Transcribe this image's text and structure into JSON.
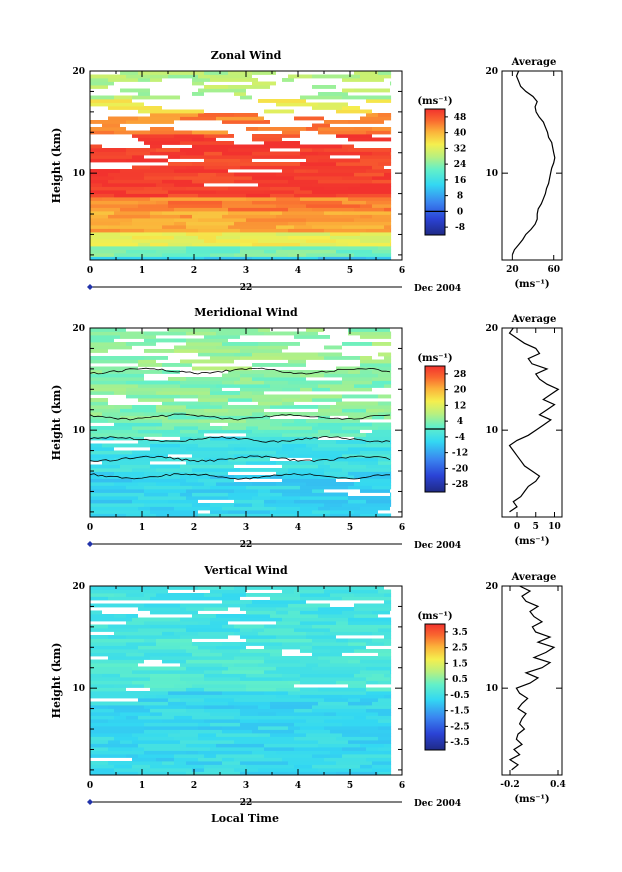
{
  "footer": {
    "xlabel": "Local Time"
  },
  "cbar_unit": "(ms⁻¹)",
  "chart_data": [
    {
      "type": "heatmap",
      "title": "Zonal Wind",
      "ylabel": "Height (km)",
      "xlim": [
        0,
        6
      ],
      "ylim": [
        1.5,
        20
      ],
      "x_ticks": [
        "0",
        "1",
        "2",
        "3",
        "4",
        "5",
        "6"
      ],
      "y_ticks": [
        "10",
        "20"
      ],
      "date_label": "22",
      "date_suffix": "Dec 2004",
      "colorbar": {
        "unit": "(ms⁻¹)",
        "ticks": [
          "48",
          "40",
          "32",
          "24",
          "16",
          "8",
          "0",
          "-8"
        ],
        "min": -12,
        "max": 52
      },
      "profile": {
        "title": "Average",
        "xlim": [
          10,
          68
        ],
        "x_ticks": [
          "20",
          "60"
        ],
        "xlabel": "(ms⁻¹)",
        "y_ticks": [
          "10",
          "20"
        ],
        "heights": [
          2,
          2.5,
          3,
          3.5,
          4,
          4.5,
          5,
          5.5,
          6,
          6.5,
          7,
          7.5,
          8,
          8.5,
          9,
          9.5,
          10,
          10.5,
          11,
          11.5,
          12,
          12.5,
          13,
          13.5,
          14,
          14.5,
          15,
          15.5,
          16,
          16.5,
          17,
          17.5,
          18,
          18.5,
          19,
          19.5,
          20
        ],
        "values": [
          20,
          22,
          26,
          30,
          33,
          38,
          42,
          44,
          44,
          45,
          48,
          50,
          52,
          53,
          55,
          56,
          57,
          58,
          60,
          61,
          60,
          59,
          58,
          55,
          54,
          52,
          50,
          46,
          43,
          42,
          44,
          40,
          33,
          28,
          26,
          24,
          26
        ]
      }
    },
    {
      "type": "heatmap",
      "title": "Meridional Wind",
      "ylabel": "Height (km)",
      "xlim": [
        0,
        6
      ],
      "ylim": [
        1.5,
        20
      ],
      "x_ticks": [
        "0",
        "1",
        "2",
        "3",
        "4",
        "5",
        "6"
      ],
      "y_ticks": [
        "10",
        "20"
      ],
      "date_label": "22",
      "date_suffix": "Dec 2004",
      "colorbar": {
        "unit": "(ms⁻¹)",
        "ticks": [
          "28",
          "20",
          "12",
          "4",
          "-4",
          "-12",
          "-20",
          "-28"
        ],
        "min": -32,
        "max": 32
      },
      "profile": {
        "title": "Average",
        "xlim": [
          -4,
          12
        ],
        "x_ticks": [
          "0",
          "5",
          "10"
        ],
        "xlabel": "(ms⁻¹)",
        "y_ticks": [
          "10",
          "20"
        ],
        "heights": [
          2,
          2.5,
          3,
          3.5,
          4,
          4.5,
          5,
          5.5,
          6,
          6.5,
          7,
          7.5,
          8,
          8.5,
          9,
          9.5,
          10,
          10.5,
          11,
          11.5,
          12,
          12.5,
          13,
          13.5,
          14,
          14.5,
          15,
          15.5,
          16,
          16.5,
          17,
          17.5,
          18,
          18.5,
          19,
          19.5,
          20
        ],
        "values": [
          -2,
          0,
          -1,
          1,
          2,
          3,
          5,
          6,
          4,
          2,
          1,
          0,
          -1,
          -2,
          0,
          3,
          5,
          7,
          9,
          6,
          8,
          10,
          7,
          9,
          11,
          8,
          6,
          5,
          8,
          4,
          3,
          6,
          5,
          2,
          0,
          -2,
          -1
        ]
      }
    },
    {
      "type": "heatmap",
      "title": "Vertical Wind",
      "ylabel": "Height (km)",
      "xlim": [
        0,
        6
      ],
      "ylim": [
        1.5,
        20
      ],
      "x_ticks": [
        "0",
        "1",
        "2",
        "3",
        "4",
        "5",
        "6"
      ],
      "y_ticks": [
        "10",
        "20"
      ],
      "date_label": "22",
      "date_suffix": "Dec 2004",
      "colorbar": {
        "unit": "(ms⁻¹)",
        "ticks": [
          "3.5",
          "2.5",
          "1.5",
          "0.5",
          "-0.5",
          "-1.5",
          "-2.5",
          "-3.5"
        ],
        "min": -4,
        "max": 4
      },
      "profile": {
        "title": "Average",
        "xlim": [
          -0.3,
          0.45
        ],
        "x_ticks": [
          "-0.2",
          "0.4"
        ],
        "xlabel": "(ms⁻¹)",
        "y_ticks": [
          "10",
          "20"
        ],
        "heights": [
          2,
          2.5,
          3,
          3.5,
          4,
          4.5,
          5,
          5.5,
          6,
          6.5,
          7,
          7.5,
          8,
          8.5,
          9,
          9.5,
          10,
          10.5,
          11,
          11.5,
          12,
          12.5,
          13,
          13.5,
          14,
          14.5,
          15,
          15.5,
          16,
          16.5,
          17,
          17.5,
          18,
          18.5,
          19,
          19.5,
          20
        ],
        "values": [
          -0.18,
          -0.1,
          -0.2,
          -0.08,
          -0.15,
          -0.05,
          -0.12,
          -0.1,
          -0.02,
          -0.08,
          -0.05,
          0.0,
          -0.1,
          -0.05,
          0.02,
          -0.08,
          -0.12,
          0.05,
          0.15,
          0.0,
          0.2,
          0.3,
          0.1,
          0.25,
          0.35,
          0.15,
          0.3,
          0.12,
          0.08,
          0.2,
          0.1,
          0.05,
          0.15,
          0.0,
          -0.05,
          0.05,
          -0.08
        ]
      }
    }
  ]
}
